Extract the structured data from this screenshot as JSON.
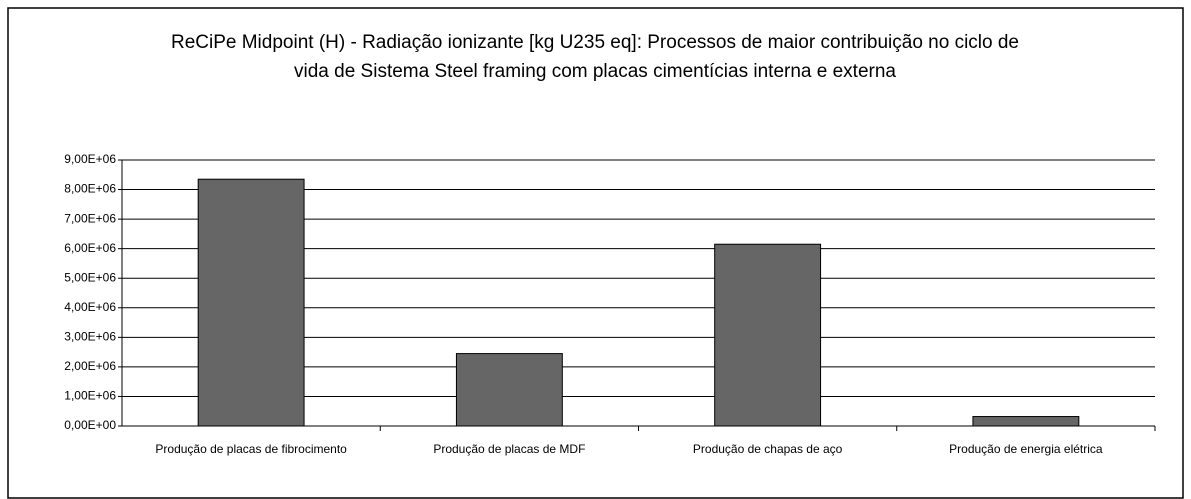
{
  "chart_data": {
    "type": "bar",
    "title": "ReCiPe Midpoint (H) - Radiação ionizante [kg U235 eq]: Processos de maior contribuição no ciclo de vida de Sistema Steel framing com placas cimentícias interna e externa",
    "categories": [
      "Produção de placas de fibrocimento",
      "Produção de placas de MDF",
      "Produção de chapas de aço",
      "Produção de energia elétrica"
    ],
    "values": [
      8350000,
      2450000,
      6150000,
      320000
    ],
    "color": "#666666",
    "ylim": [
      0,
      9000000
    ],
    "yticks": [
      {
        "value": 0,
        "label": "0,00E+00"
      },
      {
        "value": 1000000,
        "label": "1,00E+06"
      },
      {
        "value": 2000000,
        "label": "2,00E+06"
      },
      {
        "value": 3000000,
        "label": "3,00E+06"
      },
      {
        "value": 4000000,
        "label": "4,00E+06"
      },
      {
        "value": 5000000,
        "label": "5,00E+06"
      },
      {
        "value": 6000000,
        "label": "6,00E+06"
      },
      {
        "value": 7000000,
        "label": "7,00E+06"
      },
      {
        "value": 8000000,
        "label": "8,00E+06"
      },
      {
        "value": 9000000,
        "label": "9,00E+06"
      }
    ],
    "grid": true
  }
}
